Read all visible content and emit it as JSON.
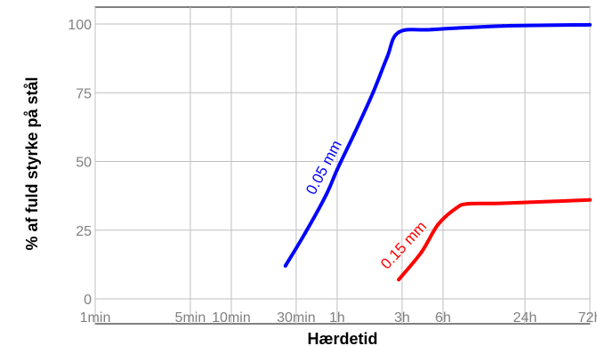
{
  "chart_data": {
    "type": "line",
    "xlabel": "Hærdetid",
    "ylabel": "% af fuld styrke på stål",
    "x_scale": "log",
    "x_ticks": [
      {
        "minutes": 1,
        "label": "1min"
      },
      {
        "minutes": 5,
        "label": "5min"
      },
      {
        "minutes": 10,
        "label": "10min"
      },
      {
        "minutes": 30,
        "label": "30min"
      },
      {
        "minutes": 60,
        "label": "1h"
      },
      {
        "minutes": 180,
        "label": "3h"
      },
      {
        "minutes": 360,
        "label": "6h"
      },
      {
        "minutes": 1440,
        "label": "24h"
      },
      {
        "minutes": 4320,
        "label": "72h"
      }
    ],
    "y_ticks": [
      0,
      25,
      50,
      75,
      100
    ],
    "ylim": [
      0,
      100
    ],
    "grid": true,
    "series": [
      {
        "name": "0.05 mm",
        "color": "#0000ff",
        "points": [
          [
            25,
            12
          ],
          [
            35,
            24
          ],
          [
            50,
            38
          ],
          [
            60,
            47
          ],
          [
            80,
            60
          ],
          [
            110,
            75
          ],
          [
            140,
            88
          ],
          [
            170,
            97
          ],
          [
            300,
            98
          ],
          [
            1000,
            99.3
          ],
          [
            4320,
            99.7
          ]
        ]
      },
      {
        "name": "0.15 mm",
        "color": "#ff0000",
        "points": [
          [
            170,
            7
          ],
          [
            250,
            17
          ],
          [
            330,
            27
          ],
          [
            450,
            33
          ],
          [
            550,
            34.6
          ],
          [
            1000,
            34.8
          ],
          [
            4320,
            36
          ]
        ]
      }
    ]
  }
}
